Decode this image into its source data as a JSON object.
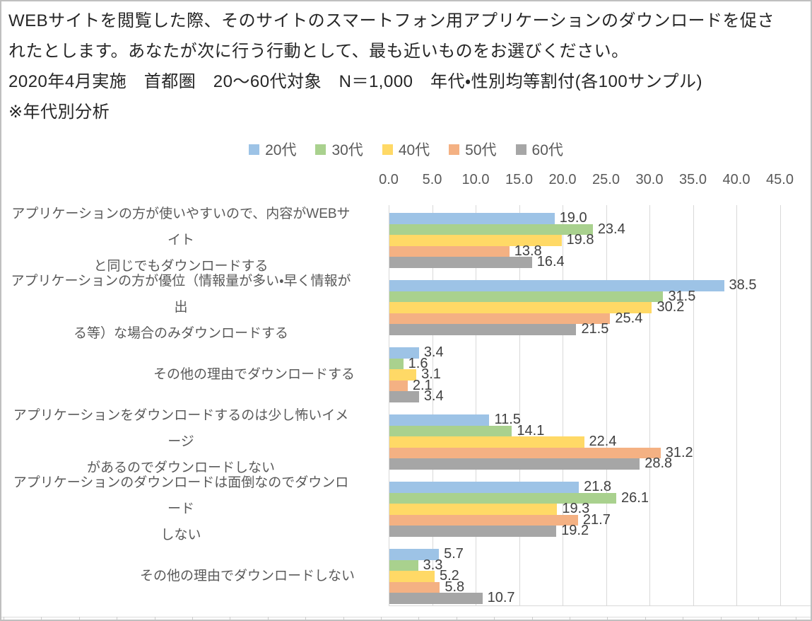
{
  "header": {
    "line1": "WEBサイトを閲覧した際、そのサイトのスマートフォン用アプリケーションのダウンロードを促さ",
    "line2": "れたとします。あなたが次に行う行動として、最も近いものをお選びください。",
    "line3": "2020年4月実施　首都圏　20～60代対象　N＝1,000　年代・性別均等割付(各100サンプル)",
    "line4": "※年代別分析"
  },
  "chart_data": {
    "type": "bar",
    "orientation": "horizontal",
    "legend_position": "top",
    "grid": true,
    "xlim": [
      0,
      45
    ],
    "x_ticks": [
      "0.0",
      "5.0",
      "10.0",
      "15.0",
      "20.0",
      "25.0",
      "30.0",
      "35.0",
      "40.0",
      "45.0"
    ],
    "categories": [
      "アプリケーションの方が使いやすいので、内容がWEBサイトと同じでもダウンロードする",
      "アプリケーションの方が優位（情報量が多い・早く情報が出る等）な場合のみダウンロードする",
      "その他の理由でダウンロードする",
      "アプリケーションをダウンロードするのは少し怖いイメージがあるのでダウンロードしない",
      "アプリケーションのダウンロードは面倒なのでダウンロードしない",
      "その他の理由でダウンロードしない"
    ],
    "category_lines": [
      [
        "アプリケーションの方が使いやすいので、内容がWEBサイト",
        "と同じでもダウンロードする"
      ],
      [
        "アプリケーションの方が優位（情報量が多い・早く情報が出",
        "る等）な場合のみダウンロードする"
      ],
      [
        "その他の理由でダウンロードする"
      ],
      [
        "アプリケーションをダウンロードするのは少し怖いイメージ",
        "があるのでダウンロードしない"
      ],
      [
        "アプリケーションのダウンロードは面倒なのでダウンロード",
        "しない"
      ],
      [
        "その他の理由でダウンロードしない"
      ]
    ],
    "series": [
      {
        "name": "20代",
        "color": "#9DC3E6",
        "values": [
          19.0,
          38.5,
          3.4,
          11.5,
          21.8,
          5.7
        ]
      },
      {
        "name": "30代",
        "color": "#A9D18E",
        "values": [
          23.4,
          31.5,
          1.6,
          14.1,
          26.1,
          3.3
        ]
      },
      {
        "name": "40代",
        "color": "#FFD966",
        "values": [
          19.8,
          30.2,
          3.1,
          22.4,
          19.3,
          5.2
        ]
      },
      {
        "name": "50代",
        "color": "#F4B183",
        "values": [
          13.8,
          25.4,
          2.1,
          31.2,
          21.7,
          5.8
        ]
      },
      {
        "name": "60代",
        "color": "#A6A6A6",
        "values": [
          16.4,
          21.5,
          3.4,
          28.8,
          19.2,
          10.7
        ]
      }
    ],
    "colors": {
      "gridline": "#D9D9D9",
      "axis_text": "#595959",
      "category_text": "#595959",
      "value_label_text": "#404040",
      "header_text": "#262626"
    }
  }
}
